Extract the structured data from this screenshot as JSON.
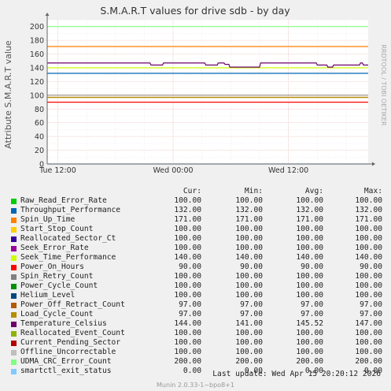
{
  "colors": {
    "background": "#f0f0f0",
    "plot_bg": "#ffffff",
    "grid_major": "#f2b8b8",
    "grid_minor": "#e0e0e0",
    "axis": "#666666"
  },
  "chart_data": {
    "type": "line",
    "title": "S.M.A.R.T values for drive sdb - by day",
    "ylabel": "Attribute S.M.A.R.T value",
    "side_text": "RRDTOOL / TOBI OETIKER",
    "ylim": [
      0,
      210
    ],
    "y_ticks": [
      0,
      20,
      40,
      60,
      80,
      100,
      120,
      140,
      160,
      180,
      200
    ],
    "x_tick_labels": [
      "Tue 12:00",
      "Wed 00:00",
      "Wed 12:00"
    ],
    "x_tick_hours": [
      0,
      12,
      24
    ],
    "x_range_hours": [
      -1.1,
      32.3
    ],
    "grid": true,
    "series": [
      {
        "name": "Raw_Read_Error_Rate",
        "color": "#00cc00",
        "constant": 100
      },
      {
        "name": "Throughput_Performance",
        "color": "#0066b3",
        "constant": 132
      },
      {
        "name": "Spin_Up_Time",
        "color": "#ff8000",
        "constant": 171
      },
      {
        "name": "Start_Stop_Count",
        "color": "#ffcc00",
        "constant": 100
      },
      {
        "name": "Reallocated_Sector_Ct",
        "color": "#330099",
        "constant": 100
      },
      {
        "name": "Seek_Error_Rate",
        "color": "#990099",
        "constant": 100
      },
      {
        "name": "Seek_Time_Performance",
        "color": "#ccff00",
        "constant": 140
      },
      {
        "name": "Power_On_Hours",
        "color": "#ff0000",
        "constant": 90
      },
      {
        "name": "Spin_Retry_Count",
        "color": "#808080",
        "constant": 100
      },
      {
        "name": "Power_Cycle_Count",
        "color": "#008f00",
        "constant": 100
      },
      {
        "name": "Helium_Level",
        "color": "#00487d",
        "constant": 100
      },
      {
        "name": "Power_Off_Retract_Count",
        "color": "#b35a00",
        "constant": 97
      },
      {
        "name": "Load_Cycle_Count",
        "color": "#b38f00",
        "constant": 97
      },
      {
        "name": "Temperature_Celsius",
        "color": "#6b006b",
        "points": [
          [
            -1.1,
            147
          ],
          [
            9.6,
            147
          ],
          [
            9.7,
            144
          ],
          [
            10.9,
            144
          ],
          [
            11.0,
            147
          ],
          [
            15.3,
            147
          ],
          [
            15.4,
            144
          ],
          [
            16.6,
            144
          ],
          [
            16.7,
            147
          ],
          [
            17.3,
            147
          ],
          [
            17.4,
            145
          ],
          [
            17.8,
            145
          ],
          [
            17.9,
            141
          ],
          [
            21.0,
            141
          ],
          [
            21.1,
            147
          ],
          [
            26.9,
            147
          ],
          [
            27.0,
            144
          ],
          [
            28.0,
            144
          ],
          [
            28.1,
            141
          ],
          [
            28.6,
            141
          ],
          [
            28.7,
            144
          ],
          [
            31.4,
            144
          ],
          [
            31.5,
            147
          ],
          [
            31.7,
            147
          ],
          [
            31.8,
            144
          ],
          [
            32.3,
            144
          ]
        ]
      },
      {
        "name": "Reallocated_Event_Count",
        "color": "#8fb300",
        "constant": 100
      },
      {
        "name": "Current_Pending_Sector",
        "color": "#b30000",
        "constant": 100
      },
      {
        "name": "Offline_Uncorrectable",
        "color": "#bebebe",
        "constant": 100
      },
      {
        "name": "UDMA_CRC_Error_Count",
        "color": "#80ff80",
        "constant": 200
      },
      {
        "name": "smartctl_exit_status",
        "color": "#80c9ff",
        "constant": 0
      }
    ]
  },
  "legend": {
    "headers": {
      "cur": "Cur:",
      "min": "Min:",
      "avg": "Avg:",
      "max": "Max:"
    },
    "rows": [
      {
        "name": "Raw_Read_Error_Rate",
        "color": "#00cc00",
        "cur": "100.00",
        "min": "100.00",
        "avg": "100.00",
        "max": "100.00"
      },
      {
        "name": "Throughput_Performance",
        "color": "#0066b3",
        "cur": "132.00",
        "min": "132.00",
        "avg": "132.00",
        "max": "132.00"
      },
      {
        "name": "Spin_Up_Time",
        "color": "#ff8000",
        "cur": "171.00",
        "min": "171.00",
        "avg": "171.00",
        "max": "171.00"
      },
      {
        "name": "Start_Stop_Count",
        "color": "#ffcc00",
        "cur": "100.00",
        "min": "100.00",
        "avg": "100.00",
        "max": "100.00"
      },
      {
        "name": "Reallocated_Sector_Ct",
        "color": "#330099",
        "cur": "100.00",
        "min": "100.00",
        "avg": "100.00",
        "max": "100.00"
      },
      {
        "name": "Seek_Error_Rate",
        "color": "#990099",
        "cur": "100.00",
        "min": "100.00",
        "avg": "100.00",
        "max": "100.00"
      },
      {
        "name": "Seek_Time_Performance",
        "color": "#ccff00",
        "cur": "140.00",
        "min": "140.00",
        "avg": "140.00",
        "max": "140.00"
      },
      {
        "name": "Power_On_Hours",
        "color": "#ff0000",
        "cur": "90.00",
        "min": "90.00",
        "avg": "90.00",
        "max": "90.00"
      },
      {
        "name": "Spin_Retry_Count",
        "color": "#808080",
        "cur": "100.00",
        "min": "100.00",
        "avg": "100.00",
        "max": "100.00"
      },
      {
        "name": "Power_Cycle_Count",
        "color": "#008f00",
        "cur": "100.00",
        "min": "100.00",
        "avg": "100.00",
        "max": "100.00"
      },
      {
        "name": "Helium_Level",
        "color": "#00487d",
        "cur": "100.00",
        "min": "100.00",
        "avg": "100.00",
        "max": "100.00"
      },
      {
        "name": "Power_Off_Retract_Count",
        "color": "#b35a00",
        "cur": "97.00",
        "min": "97.00",
        "avg": "97.00",
        "max": "97.00"
      },
      {
        "name": "Load_Cycle_Count",
        "color": "#b38f00",
        "cur": "97.00",
        "min": "97.00",
        "avg": "97.00",
        "max": "97.00"
      },
      {
        "name": "Temperature_Celsius",
        "color": "#6b006b",
        "cur": "144.00",
        "min": "141.00",
        "avg": "145.52",
        "max": "147.00"
      },
      {
        "name": "Reallocated_Event_Count",
        "color": "#8fb300",
        "cur": "100.00",
        "min": "100.00",
        "avg": "100.00",
        "max": "100.00"
      },
      {
        "name": "Current_Pending_Sector",
        "color": "#b30000",
        "cur": "100.00",
        "min": "100.00",
        "avg": "100.00",
        "max": "100.00"
      },
      {
        "name": "Offline_Uncorrectable",
        "color": "#bebebe",
        "cur": "100.00",
        "min": "100.00",
        "avg": "100.00",
        "max": "100.00"
      },
      {
        "name": "UDMA_CRC_Error_Count",
        "color": "#80ff80",
        "cur": "200.00",
        "min": "200.00",
        "avg": "200.00",
        "max": "200.00"
      },
      {
        "name": "smartctl_exit_status",
        "color": "#80c9ff",
        "cur": "0.00",
        "min": "0.00",
        "avg": "0.00",
        "max": "0.00"
      }
    ]
  },
  "footer": {
    "last_update": "Last update:  Wed Apr 15 20:20:12 2026",
    "version": "Munin 2.0.33-1~bpo8+1"
  }
}
